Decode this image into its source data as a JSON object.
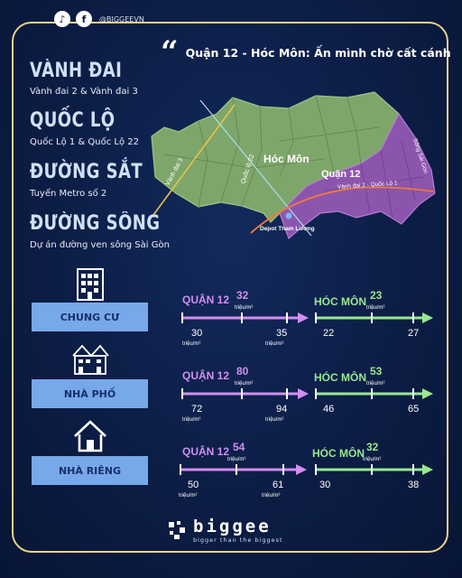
{
  "header": {
    "handle": "@BIGGEEVN",
    "tiktok_icon": "tiktok-icon",
    "facebook_icon": "facebook-icon"
  },
  "title": "Quận 12 - Hóc Môn: Ấn mình chờ cất cánh",
  "categories": [
    {
      "title": "VÀNH ĐAI",
      "sub": "Vành đai 2 & Vành đai 3"
    },
    {
      "title": "QUỐC LỘ",
      "sub": "Quốc Lộ 1 & Quốc Lộ 22"
    },
    {
      "title": "ĐƯỜNG SẮT",
      "sub": "Tuyến Metro số 2"
    },
    {
      "title": "ĐƯỜNG SÔNG",
      "sub": "Dự án đường ven sông Sài Gòn"
    }
  ],
  "map": {
    "label_hocmon": "Hóc Môn",
    "label_q12": "Quận 12",
    "vanhdai3": "Vành đai 3",
    "quoclo22": "Quốc lộ 22",
    "vanhdai2": "Vành đai 2 - Quốc Lộ 1",
    "song": "Sông Sài Gòn",
    "depot": "Depot Tham Lương"
  },
  "properties": [
    {
      "name": "CHUNG CƯ",
      "icon": "apartment-icon",
      "q12": {
        "label": "QUẬN 12",
        "min": "30",
        "avg": "32",
        "max": "35"
      },
      "hm": {
        "label": "HÓC MÔN",
        "min": "22",
        "avg": "23",
        "max": "27"
      }
    },
    {
      "name": "NHÀ PHỐ",
      "icon": "townhouse-icon",
      "q12": {
        "label": "QUẬN 12",
        "min": "72",
        "avg": "80",
        "max": "94"
      },
      "hm": {
        "label": "HÓC MÔN",
        "min": "46",
        "avg": "53",
        "max": "65"
      }
    },
    {
      "name": "NHÀ RIÊNG",
      "icon": "house-icon",
      "q12": {
        "label": "QUẬN 12",
        "min": "50",
        "avg": "54",
        "max": "61"
      },
      "hm": {
        "label": "HÓC MÔN",
        "min": "30",
        "avg": "32",
        "max": "38"
      }
    }
  ],
  "unit": "triệu/m²",
  "colors": {
    "q12": "#d28ef0",
    "hm": "#98e890",
    "button": "#77a8ea",
    "border": "#e9d389",
    "bg": "#0c1d45"
  },
  "brand": {
    "name": "biggee",
    "tagline": "bigger than the biggest"
  }
}
